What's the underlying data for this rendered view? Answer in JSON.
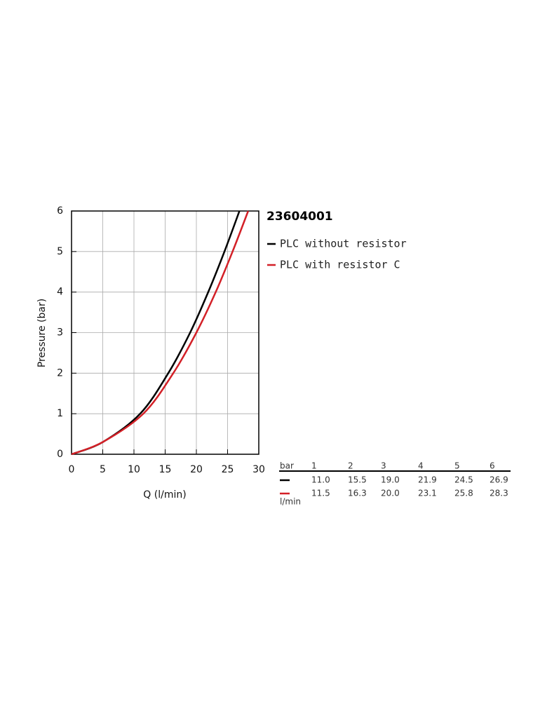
{
  "chart_data": {
    "type": "line",
    "title": "23604001",
    "x_label": "Q (l/min)",
    "y_label": "Pressure (bar)",
    "xlim": [
      0,
      30
    ],
    "xticks": [
      0,
      5,
      10,
      15,
      20,
      25,
      30
    ],
    "ylim": [
      0,
      6
    ],
    "yticks": [
      0,
      1,
      2,
      3,
      4,
      5,
      6
    ],
    "grid": true,
    "series": [
      {
        "name": "PLC without resistor",
        "color": "#000000",
        "x": [
          0,
          5,
          11.0,
          15.5,
          19.0,
          21.9,
          24.5,
          26.9
        ],
        "values": [
          0,
          0.3,
          1,
          2,
          3,
          4,
          5,
          6
        ]
      },
      {
        "name": "PLC with resistor C",
        "color": "#d32027",
        "x": [
          0,
          5,
          11.5,
          16.3,
          20.0,
          23.1,
          25.8,
          28.3
        ],
        "values": [
          0,
          0.3,
          1,
          2,
          3,
          4,
          5,
          6
        ]
      }
    ]
  },
  "table": {
    "corner": "bar",
    "columns": [
      "1",
      "2",
      "3",
      "4",
      "5",
      "6"
    ],
    "row_unit": "l/min",
    "rows": [
      {
        "color": "#000000",
        "cells": [
          "11.0",
          "15.5",
          "19.0",
          "21.9",
          "24.5",
          "26.9"
        ]
      },
      {
        "color": "#d32027",
        "cells": [
          "11.5",
          "16.3",
          "20.0",
          "23.1",
          "25.8",
          "28.3"
        ]
      }
    ]
  }
}
